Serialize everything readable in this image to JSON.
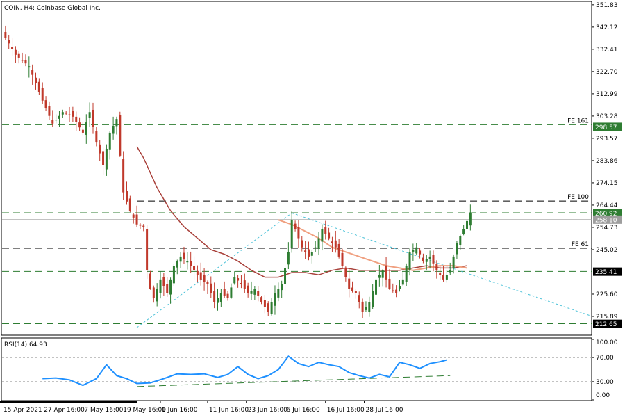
{
  "header": {
    "title": "COIN, H4:  Coinbase Global Inc."
  },
  "rsi": {
    "label": "RSI(14) 64.93",
    "levels": [
      "100.00",
      "70.00",
      "30.00",
      "0.00"
    ]
  },
  "price_axis": {
    "ticks": [
      "351.83",
      "342.12",
      "332.41",
      "322.70",
      "312.99",
      "303.28",
      "293.57",
      "283.86",
      "274.15",
      "264.44",
      "254.73",
      "245.02",
      "225.60",
      "215.89"
    ]
  },
  "price_tags": [
    {
      "text": "298.57",
      "color": "#2e7d32"
    },
    {
      "text": "260.92",
      "color": "#2e7d32"
    },
    {
      "text": "258.10",
      "color": "#9e9e9e"
    },
    {
      "text": "235.41",
      "color": "#000000"
    },
    {
      "text": "212.65",
      "color": "#000000"
    }
  ],
  "levels": [
    {
      "label": "FE 161",
      "price": 299.5
    },
    {
      "label": "FE 100",
      "price": 266.2
    },
    {
      "label": "FE 61",
      "price": 245.6
    },
    {
      "label": "",
      "price": 261.1
    },
    {
      "label": "",
      "price": 235.5
    },
    {
      "label": "",
      "price": 212.7
    }
  ],
  "time_labels": [
    "15 Apr 2021",
    "27 Apr 16:00",
    "7 May 16:00",
    "19 May 16:00",
    "1 Jun 16:00",
    "11 Jun 16:00",
    "23 Jun 16:00",
    "6 Jul 16:00",
    "16 Jul 16:00",
    "28 Jul 16:00"
  ],
  "colors": {
    "bull": "#2e7d32",
    "bear": "#c0392b",
    "rsi": "#1e90ff",
    "ma_slow": "#a9403a",
    "ma_fast": "#f0a080",
    "trend": "#4fc3d9",
    "level": "#2e7d32"
  },
  "chart_data": {
    "type": "candlestick",
    "symbol": "COIN",
    "timeframe": "H4",
    "title": "COIN, H4:  Coinbase Global Inc.",
    "ylim": [
      208,
      353
    ],
    "y_ticks": [
      351.83,
      342.12,
      332.41,
      322.7,
      312.99,
      303.28,
      293.57,
      283.86,
      274.15,
      264.44,
      254.73,
      245.02,
      225.6,
      215.89
    ],
    "x_tick_labels": [
      "15 Apr 2021",
      "27 Apr 16:00",
      "7 May 16:00",
      "19 May 16:00",
      "1 Jun 16:00",
      "11 Jun 16:00",
      "23 Jun 16:00",
      "6 Jul 16:00",
      "16 Jul 16:00",
      "28 Jul 16:00"
    ],
    "close_path": [
      [
        0,
        340
      ],
      [
        4,
        330
      ],
      [
        8,
        325
      ],
      [
        12,
        310
      ],
      [
        15,
        300
      ],
      [
        18,
        305
      ],
      [
        21,
        303
      ],
      [
        24,
        296
      ],
      [
        26,
        305
      ],
      [
        28,
        292
      ],
      [
        30,
        282
      ],
      [
        32,
        296
      ],
      [
        34,
        302
      ],
      [
        36,
        270
      ],
      [
        38,
        262
      ],
      [
        40,
        256
      ],
      [
        42,
        255
      ],
      [
        43,
        236
      ],
      [
        44,
        228
      ],
      [
        45,
        224
      ],
      [
        47,
        232
      ],
      [
        49,
        226
      ],
      [
        51,
        238
      ],
      [
        53,
        242
      ],
      [
        55,
        240
      ],
      [
        57,
        236
      ],
      [
        59,
        232
      ],
      [
        61,
        230
      ],
      [
        63,
        222
      ],
      [
        65,
        226
      ],
      [
        67,
        224
      ],
      [
        69,
        233
      ],
      [
        71,
        230
      ],
      [
        73,
        226
      ],
      [
        75,
        228
      ],
      [
        77,
        222
      ],
      [
        79,
        218
      ],
      [
        81,
        226
      ],
      [
        83,
        230
      ],
      [
        85,
        244
      ],
      [
        86,
        258
      ],
      [
        87,
        254
      ],
      [
        89,
        246
      ],
      [
        91,
        242
      ],
      [
        93,
        246
      ],
      [
        95,
        254
      ],
      [
        97,
        250
      ],
      [
        99,
        246
      ],
      [
        101,
        238
      ],
      [
        103,
        228
      ],
      [
        105,
        226
      ],
      [
        107,
        218
      ],
      [
        109,
        222
      ],
      [
        111,
        232
      ],
      [
        113,
        236
      ],
      [
        115,
        228
      ],
      [
        117,
        226
      ],
      [
        119,
        232
      ],
      [
        121,
        244
      ],
      [
        123,
        246
      ],
      [
        125,
        240
      ],
      [
        127,
        242
      ],
      [
        129,
        236
      ],
      [
        131,
        232
      ],
      [
        133,
        236
      ],
      [
        135,
        248
      ],
      [
        137,
        254
      ],
      [
        139,
        261
      ]
    ],
    "ma_slow": [
      [
        40,
        290
      ],
      [
        42,
        285
      ],
      [
        46,
        272
      ],
      [
        50,
        262
      ],
      [
        54,
        255
      ],
      [
        58,
        250
      ],
      [
        62,
        245
      ],
      [
        66,
        243
      ],
      [
        70,
        240
      ],
      [
        74,
        236
      ],
      [
        78,
        233
      ],
      [
        82,
        233
      ],
      [
        86,
        235
      ],
      [
        90,
        235
      ],
      [
        94,
        234
      ],
      [
        98,
        236
      ],
      [
        102,
        237
      ],
      [
        106,
        236
      ],
      [
        110,
        236
      ],
      [
        114,
        236
      ],
      [
        118,
        236
      ],
      [
        122,
        237
      ],
      [
        126,
        238
      ],
      [
        130,
        237
      ],
      [
        134,
        237
      ],
      [
        138,
        238
      ]
    ],
    "ma_fast": [
      [
        82,
        258
      ],
      [
        86,
        256
      ],
      [
        90,
        253
      ],
      [
        94,
        250
      ],
      [
        98,
        246
      ],
      [
        102,
        244
      ],
      [
        106,
        242
      ],
      [
        110,
        240
      ],
      [
        114,
        238
      ],
      [
        118,
        237
      ],
      [
        122,
        236
      ],
      [
        126,
        237
      ],
      [
        130,
        238
      ],
      [
        134,
        238
      ],
      [
        138,
        237
      ]
    ],
    "horizontal_levels": [
      {
        "label": "FE 161",
        "price": 299.5
      },
      {
        "label": "FE 100",
        "price": 266.2
      },
      {
        "label": "FE 61",
        "price": 245.6
      },
      {
        "label": "",
        "price": 261.1
      },
      {
        "label": "",
        "price": 235.5
      },
      {
        "label": "",
        "price": 212.7
      }
    ],
    "trendlines": [
      {
        "from": [
          40,
          211
        ],
        "to": [
          86,
          261
        ]
      },
      {
        "from": [
          86,
          261
        ],
        "to": [
          175,
          216
        ]
      }
    ],
    "rsi": {
      "period": 14,
      "value": 64.93,
      "ylim": [
        0,
        100
      ],
      "ticks": [
        100,
        70,
        30,
        0
      ],
      "path": [
        [
          12,
          35
        ],
        [
          16,
          36
        ],
        [
          20,
          33
        ],
        [
          24,
          24
        ],
        [
          28,
          35
        ],
        [
          31,
          58
        ],
        [
          34,
          40
        ],
        [
          37,
          35
        ],
        [
          40,
          27
        ],
        [
          44,
          28
        ],
        [
          48,
          35
        ],
        [
          52,
          43
        ],
        [
          56,
          42
        ],
        [
          60,
          43
        ],
        [
          64,
          37
        ],
        [
          67,
          42
        ],
        [
          70,
          55
        ],
        [
          73,
          42
        ],
        [
          76,
          35
        ],
        [
          79,
          40
        ],
        [
          82,
          50
        ],
        [
          85,
          72
        ],
        [
          88,
          60
        ],
        [
          91,
          55
        ],
        [
          94,
          62
        ],
        [
          97,
          58
        ],
        [
          100,
          55
        ],
        [
          103,
          45
        ],
        [
          106,
          40
        ],
        [
          109,
          36
        ],
        [
          112,
          42
        ],
        [
          115,
          38
        ],
        [
          118,
          62
        ],
        [
          121,
          58
        ],
        [
          124,
          52
        ],
        [
          127,
          60
        ],
        [
          130,
          63
        ],
        [
          132,
          66
        ]
      ],
      "trendline": {
        "from": [
          40,
          22
        ],
        "to": [
          133,
          40
        ]
      }
    }
  }
}
